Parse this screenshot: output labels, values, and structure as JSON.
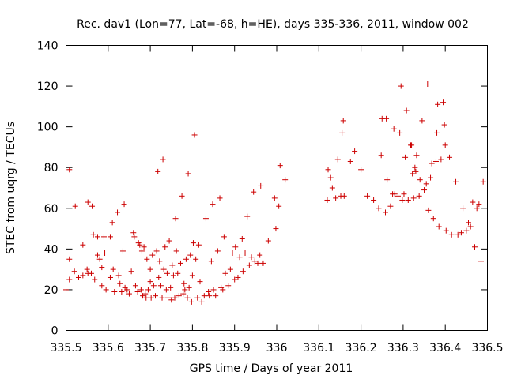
{
  "chart_data": {
    "type": "scatter",
    "title": "Rec. dav1 (Lon=77, Lat=-68, h=HE), days 335-336, 2011, window 002",
    "xlabel": "GPS time / Days of year 2011",
    "ylabel": "STEC from uqrg / TECUs",
    "xlim": [
      335.5,
      336.5
    ],
    "ylim": [
      0,
      140
    ],
    "x_ticks": [
      335.5,
      335.6,
      335.7,
      335.8,
      335.9,
      336,
      336.1,
      336.2,
      336.3,
      336.4,
      336.5
    ],
    "x_tick_labels": [
      "335.5",
      "335.6",
      "335.7",
      "335.8",
      "335.9",
      "336",
      "336.1",
      "336.2",
      "336.3",
      "336.4",
      "336.5"
    ],
    "y_ticks": [
      0,
      20,
      40,
      60,
      80,
      100,
      120,
      140
    ],
    "y_tick_labels": [
      "0",
      "20",
      "40",
      "60",
      "80",
      "100",
      "120",
      "140"
    ],
    "grid": false,
    "marker": "+",
    "colors": {
      "points": "#cc0000",
      "axes": "#000000"
    },
    "series": [
      {
        "points": [
          [
            335.5,
            20
          ],
          [
            335.508,
            35
          ],
          [
            335.508,
            79
          ],
          [
            335.508,
            25
          ],
          [
            335.52,
            29
          ],
          [
            335.522,
            61
          ],
          [
            335.53,
            26
          ],
          [
            335.54,
            42
          ],
          [
            335.54,
            27
          ],
          [
            335.55,
            30
          ],
          [
            335.552,
            63
          ],
          [
            335.552,
            28
          ],
          [
            335.56,
            28
          ],
          [
            335.562,
            61
          ],
          [
            335.565,
            47
          ],
          [
            335.568,
            25
          ],
          [
            335.575,
            37
          ],
          [
            335.575,
            46
          ],
          [
            335.58,
            35
          ],
          [
            335.585,
            22
          ],
          [
            335.585,
            31
          ],
          [
            335.59,
            46
          ],
          [
            335.592,
            38
          ],
          [
            335.595,
            20
          ],
          [
            335.605,
            46
          ],
          [
            335.605,
            26
          ],
          [
            335.61,
            53
          ],
          [
            335.612,
            30
          ],
          [
            335.615,
            19
          ],
          [
            335.622,
            58
          ],
          [
            335.625,
            27
          ],
          [
            335.628,
            23
          ],
          [
            335.632,
            19
          ],
          [
            335.635,
            39
          ],
          [
            335.638,
            62
          ],
          [
            335.64,
            21
          ],
          [
            335.645,
            20
          ],
          [
            335.65,
            18
          ],
          [
            335.655,
            29
          ],
          [
            335.66,
            48
          ],
          [
            335.662,
            46
          ],
          [
            335.665,
            22
          ],
          [
            335.67,
            19
          ],
          [
            335.672,
            43
          ],
          [
            335.675,
            42
          ],
          [
            335.678,
            20
          ],
          [
            335.68,
            39
          ],
          [
            335.682,
            17
          ],
          [
            335.685,
            41
          ],
          [
            335.688,
            18
          ],
          [
            335.69,
            16
          ],
          [
            335.692,
            35
          ],
          [
            335.695,
            20
          ],
          [
            335.7,
            30
          ],
          [
            335.7,
            24
          ],
          [
            335.702,
            16
          ],
          [
            335.705,
            37
          ],
          [
            335.708,
            22
          ],
          [
            335.712,
            17
          ],
          [
            335.715,
            39
          ],
          [
            335.718,
            78
          ],
          [
            335.72,
            26
          ],
          [
            335.722,
            34
          ],
          [
            335.725,
            22
          ],
          [
            335.728,
            16
          ],
          [
            335.73,
            84
          ],
          [
            335.732,
            30
          ],
          [
            335.735,
            41
          ],
          [
            335.738,
            20
          ],
          [
            335.74,
            28
          ],
          [
            335.742,
            16
          ],
          [
            335.745,
            44
          ],
          [
            335.748,
            21
          ],
          [
            335.75,
            15
          ],
          [
            335.752,
            32
          ],
          [
            335.755,
            27
          ],
          [
            335.758,
            16
          ],
          [
            335.76,
            55
          ],
          [
            335.762,
            39
          ],
          [
            335.765,
            28
          ],
          [
            335.768,
            17
          ],
          [
            335.772,
            33
          ],
          [
            335.775,
            66
          ],
          [
            335.778,
            18
          ],
          [
            335.78,
            23
          ],
          [
            335.782,
            20
          ],
          [
            335.785,
            35
          ],
          [
            335.788,
            16
          ],
          [
            335.79,
            77
          ],
          [
            335.792,
            21
          ],
          [
            335.795,
            37
          ],
          [
            335.798,
            14
          ],
          [
            335.8,
            27
          ],
          [
            335.802,
            43
          ],
          [
            335.805,
            96
          ],
          [
            335.808,
            35
          ],
          [
            335.812,
            16
          ],
          [
            335.815,
            42
          ],
          [
            335.818,
            24
          ],
          [
            335.822,
            14
          ],
          [
            335.828,
            17
          ],
          [
            335.832,
            55
          ],
          [
            335.838,
            19
          ],
          [
            335.84,
            17
          ],
          [
            335.845,
            34
          ],
          [
            335.848,
            62
          ],
          [
            335.85,
            20
          ],
          [
            335.855,
            17
          ],
          [
            335.86,
            39
          ],
          [
            335.865,
            65
          ],
          [
            335.868,
            21
          ],
          [
            335.872,
            20
          ],
          [
            335.875,
            46
          ],
          [
            335.878,
            28
          ],
          [
            335.885,
            22
          ],
          [
            335.89,
            30
          ],
          [
            335.895,
            38
          ],
          [
            335.9,
            25
          ],
          [
            335.902,
            41
          ],
          [
            335.908,
            26
          ],
          [
            335.912,
            36
          ],
          [
            335.918,
            45
          ],
          [
            335.92,
            29
          ],
          [
            335.925,
            38
          ],
          [
            335.93,
            56
          ],
          [
            335.935,
            32
          ],
          [
            335.94,
            36
          ],
          [
            335.945,
            68
          ],
          [
            335.948,
            34
          ],
          [
            335.955,
            33
          ],
          [
            335.96,
            37
          ],
          [
            335.962,
            71
          ],
          [
            335.968,
            33
          ],
          [
            335.98,
            44
          ],
          [
            335.995,
            65
          ],
          [
            335.998,
            50
          ],
          [
            336.005,
            61
          ],
          [
            336.008,
            81
          ],
          [
            336.02,
            74
          ],
          [
            336.12,
            64
          ],
          [
            336.122,
            79
          ],
          [
            336.128,
            75
          ],
          [
            336.132,
            70
          ],
          [
            336.14,
            65
          ],
          [
            336.145,
            84
          ],
          [
            336.152,
            66
          ],
          [
            336.155,
            97
          ],
          [
            336.158,
            103
          ],
          [
            336.16,
            66
          ],
          [
            336.175,
            83
          ],
          [
            336.185,
            88
          ],
          [
            336.2,
            79
          ],
          [
            336.215,
            66
          ],
          [
            336.23,
            64
          ],
          [
            336.242,
            60
          ],
          [
            336.248,
            86
          ],
          [
            336.25,
            104
          ],
          [
            336.258,
            58
          ],
          [
            336.26,
            104
          ],
          [
            336.262,
            74
          ],
          [
            336.27,
            61
          ],
          [
            336.275,
            67
          ],
          [
            336.278,
            99
          ],
          [
            336.28,
            67
          ],
          [
            336.288,
            66
          ],
          [
            336.292,
            97
          ],
          [
            336.295,
            120
          ],
          [
            336.298,
            64
          ],
          [
            336.302,
            67
          ],
          [
            336.305,
            85
          ],
          [
            336.308,
            108
          ],
          [
            336.312,
            64
          ],
          [
            336.318,
            91
          ],
          [
            336.32,
            91
          ],
          [
            336.322,
            77
          ],
          [
            336.325,
            65
          ],
          [
            336.328,
            80
          ],
          [
            336.33,
            78
          ],
          [
            336.332,
            86
          ],
          [
            336.338,
            66
          ],
          [
            336.34,
            74
          ],
          [
            336.345,
            103
          ],
          [
            336.35,
            69
          ],
          [
            336.355,
            72
          ],
          [
            336.358,
            121
          ],
          [
            336.36,
            59
          ],
          [
            336.365,
            75
          ],
          [
            336.368,
            82
          ],
          [
            336.372,
            55
          ],
          [
            336.378,
            83
          ],
          [
            336.38,
            97
          ],
          [
            336.382,
            111
          ],
          [
            336.385,
            51
          ],
          [
            336.39,
            84
          ],
          [
            336.395,
            112
          ],
          [
            336.398,
            101
          ],
          [
            336.4,
            91
          ],
          [
            336.402,
            49
          ],
          [
            336.41,
            85
          ],
          [
            336.415,
            47
          ],
          [
            336.425,
            73
          ],
          [
            336.43,
            47
          ],
          [
            336.438,
            48
          ],
          [
            336.442,
            60
          ],
          [
            336.45,
            49
          ],
          [
            336.455,
            53
          ],
          [
            336.46,
            51
          ],
          [
            336.465,
            63
          ],
          [
            336.47,
            41
          ],
          [
            336.475,
            60
          ],
          [
            336.48,
            62
          ],
          [
            336.485,
            34
          ],
          [
            336.49,
            73
          ]
        ]
      }
    ]
  }
}
